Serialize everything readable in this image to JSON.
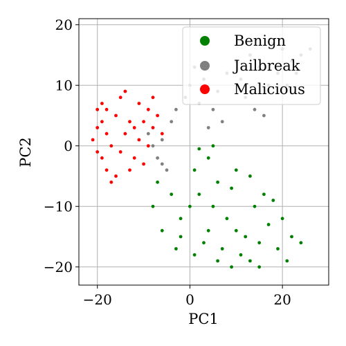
{
  "chart_data": {
    "type": "scatter",
    "title": "",
    "xlabel": "PC1",
    "ylabel": "PC2",
    "xlim": [
      -24.0,
      30.0
    ],
    "ylim": [
      -23.0,
      21.0
    ],
    "x_ticks": [
      -20,
      0,
      20
    ],
    "y_ticks": [
      -20,
      -10,
      0,
      10,
      20
    ],
    "x_tick_labels": [
      "−20",
      "0",
      "20"
    ],
    "y_tick_labels": [
      "−20",
      "−10",
      "0",
      "10",
      "20"
    ],
    "grid": true,
    "legend": {
      "placement": "top-right"
    },
    "series": [
      {
        "name": "Benign",
        "color": "#008000",
        "points": [
          [
            2,
            -8
          ],
          [
            5,
            -10
          ],
          [
            8,
            -12
          ],
          [
            10,
            -14
          ],
          [
            12,
            -15
          ],
          [
            4,
            -14
          ],
          [
            6,
            -6
          ],
          [
            0,
            -10
          ],
          [
            -2,
            -12
          ],
          [
            3,
            -16
          ],
          [
            7,
            -17
          ],
          [
            11,
            -18
          ],
          [
            15,
            -16
          ],
          [
            17,
            -13
          ],
          [
            14,
            -10
          ],
          [
            9,
            -7
          ],
          [
            1,
            -4
          ],
          [
            -4,
            -8
          ],
          [
            -6,
            -14
          ],
          [
            -3,
            -17
          ],
          [
            6,
            -19
          ],
          [
            13,
            -19
          ],
          [
            19,
            -17
          ],
          [
            20,
            -12
          ],
          [
            16,
            -8
          ],
          [
            4,
            -2
          ],
          [
            2,
            -0.5
          ],
          [
            -8,
            -10
          ],
          [
            -7,
            -6
          ],
          [
            10,
            -4
          ],
          [
            5,
            0
          ],
          [
            13,
            -5
          ],
          [
            18,
            -9
          ],
          [
            22,
            -15
          ],
          [
            24,
            -16
          ],
          [
            -2,
            -15
          ],
          [
            1,
            -18
          ],
          [
            9,
            -20
          ],
          [
            15,
            -20
          ],
          [
            21,
            -19
          ]
        ]
      },
      {
        "name": "Jailbreak",
        "color": "#808080",
        "points": [
          [
            0,
            10
          ],
          [
            3,
            11
          ],
          [
            6,
            9
          ],
          [
            8,
            12
          ],
          [
            10,
            14
          ],
          [
            13,
            15
          ],
          [
            15,
            13
          ],
          [
            18,
            17
          ],
          [
            20,
            16
          ],
          [
            22,
            14
          ],
          [
            24,
            15
          ],
          [
            26,
            16
          ],
          [
            2,
            7
          ],
          [
            5,
            6
          ],
          [
            12,
            8
          ],
          [
            14,
            6
          ],
          [
            16,
            5
          ],
          [
            -4,
            4
          ],
          [
            -6,
            1
          ],
          [
            -8,
            0
          ],
          [
            -7,
            -2
          ],
          [
            -5,
            -4
          ],
          [
            -6,
            -3
          ],
          [
            -9,
            2
          ],
          [
            -3,
            6
          ],
          [
            4,
            3
          ],
          [
            7,
            4
          ],
          [
            11,
            11
          ],
          [
            17,
            10
          ],
          [
            19,
            12
          ],
          [
            21,
            10
          ],
          [
            23,
            12
          ],
          [
            1,
            13
          ],
          [
            -1,
            8
          ]
        ]
      },
      {
        "name": "Malicious",
        "color": "#ff0000",
        "points": [
          [
            -20,
            6
          ],
          [
            -19,
            4
          ],
          [
            -18,
            2
          ],
          [
            -17,
            0
          ],
          [
            -19,
            -2
          ],
          [
            -18,
            -4
          ],
          [
            -20,
            3
          ],
          [
            -16,
            5
          ],
          [
            -17,
            -6
          ],
          [
            -15,
            -1
          ],
          [
            -14,
            2
          ],
          [
            -13,
            4
          ],
          [
            -12,
            -2
          ],
          [
            -11,
            1
          ],
          [
            -10,
            4
          ],
          [
            -9,
            6
          ],
          [
            -8,
            8
          ],
          [
            -9,
            0
          ],
          [
            -10,
            -3
          ],
          [
            -11,
            7
          ],
          [
            -14,
            9
          ],
          [
            -21,
            1
          ],
          [
            -19,
            7
          ],
          [
            -16,
            -5
          ],
          [
            -13,
            -4
          ],
          [
            -12,
            3
          ],
          [
            -8,
            3
          ],
          [
            -7,
            5
          ],
          [
            -6,
            2
          ],
          [
            -20,
            -1
          ],
          [
            -18,
            6
          ],
          [
            -15,
            8
          ]
        ]
      }
    ]
  }
}
